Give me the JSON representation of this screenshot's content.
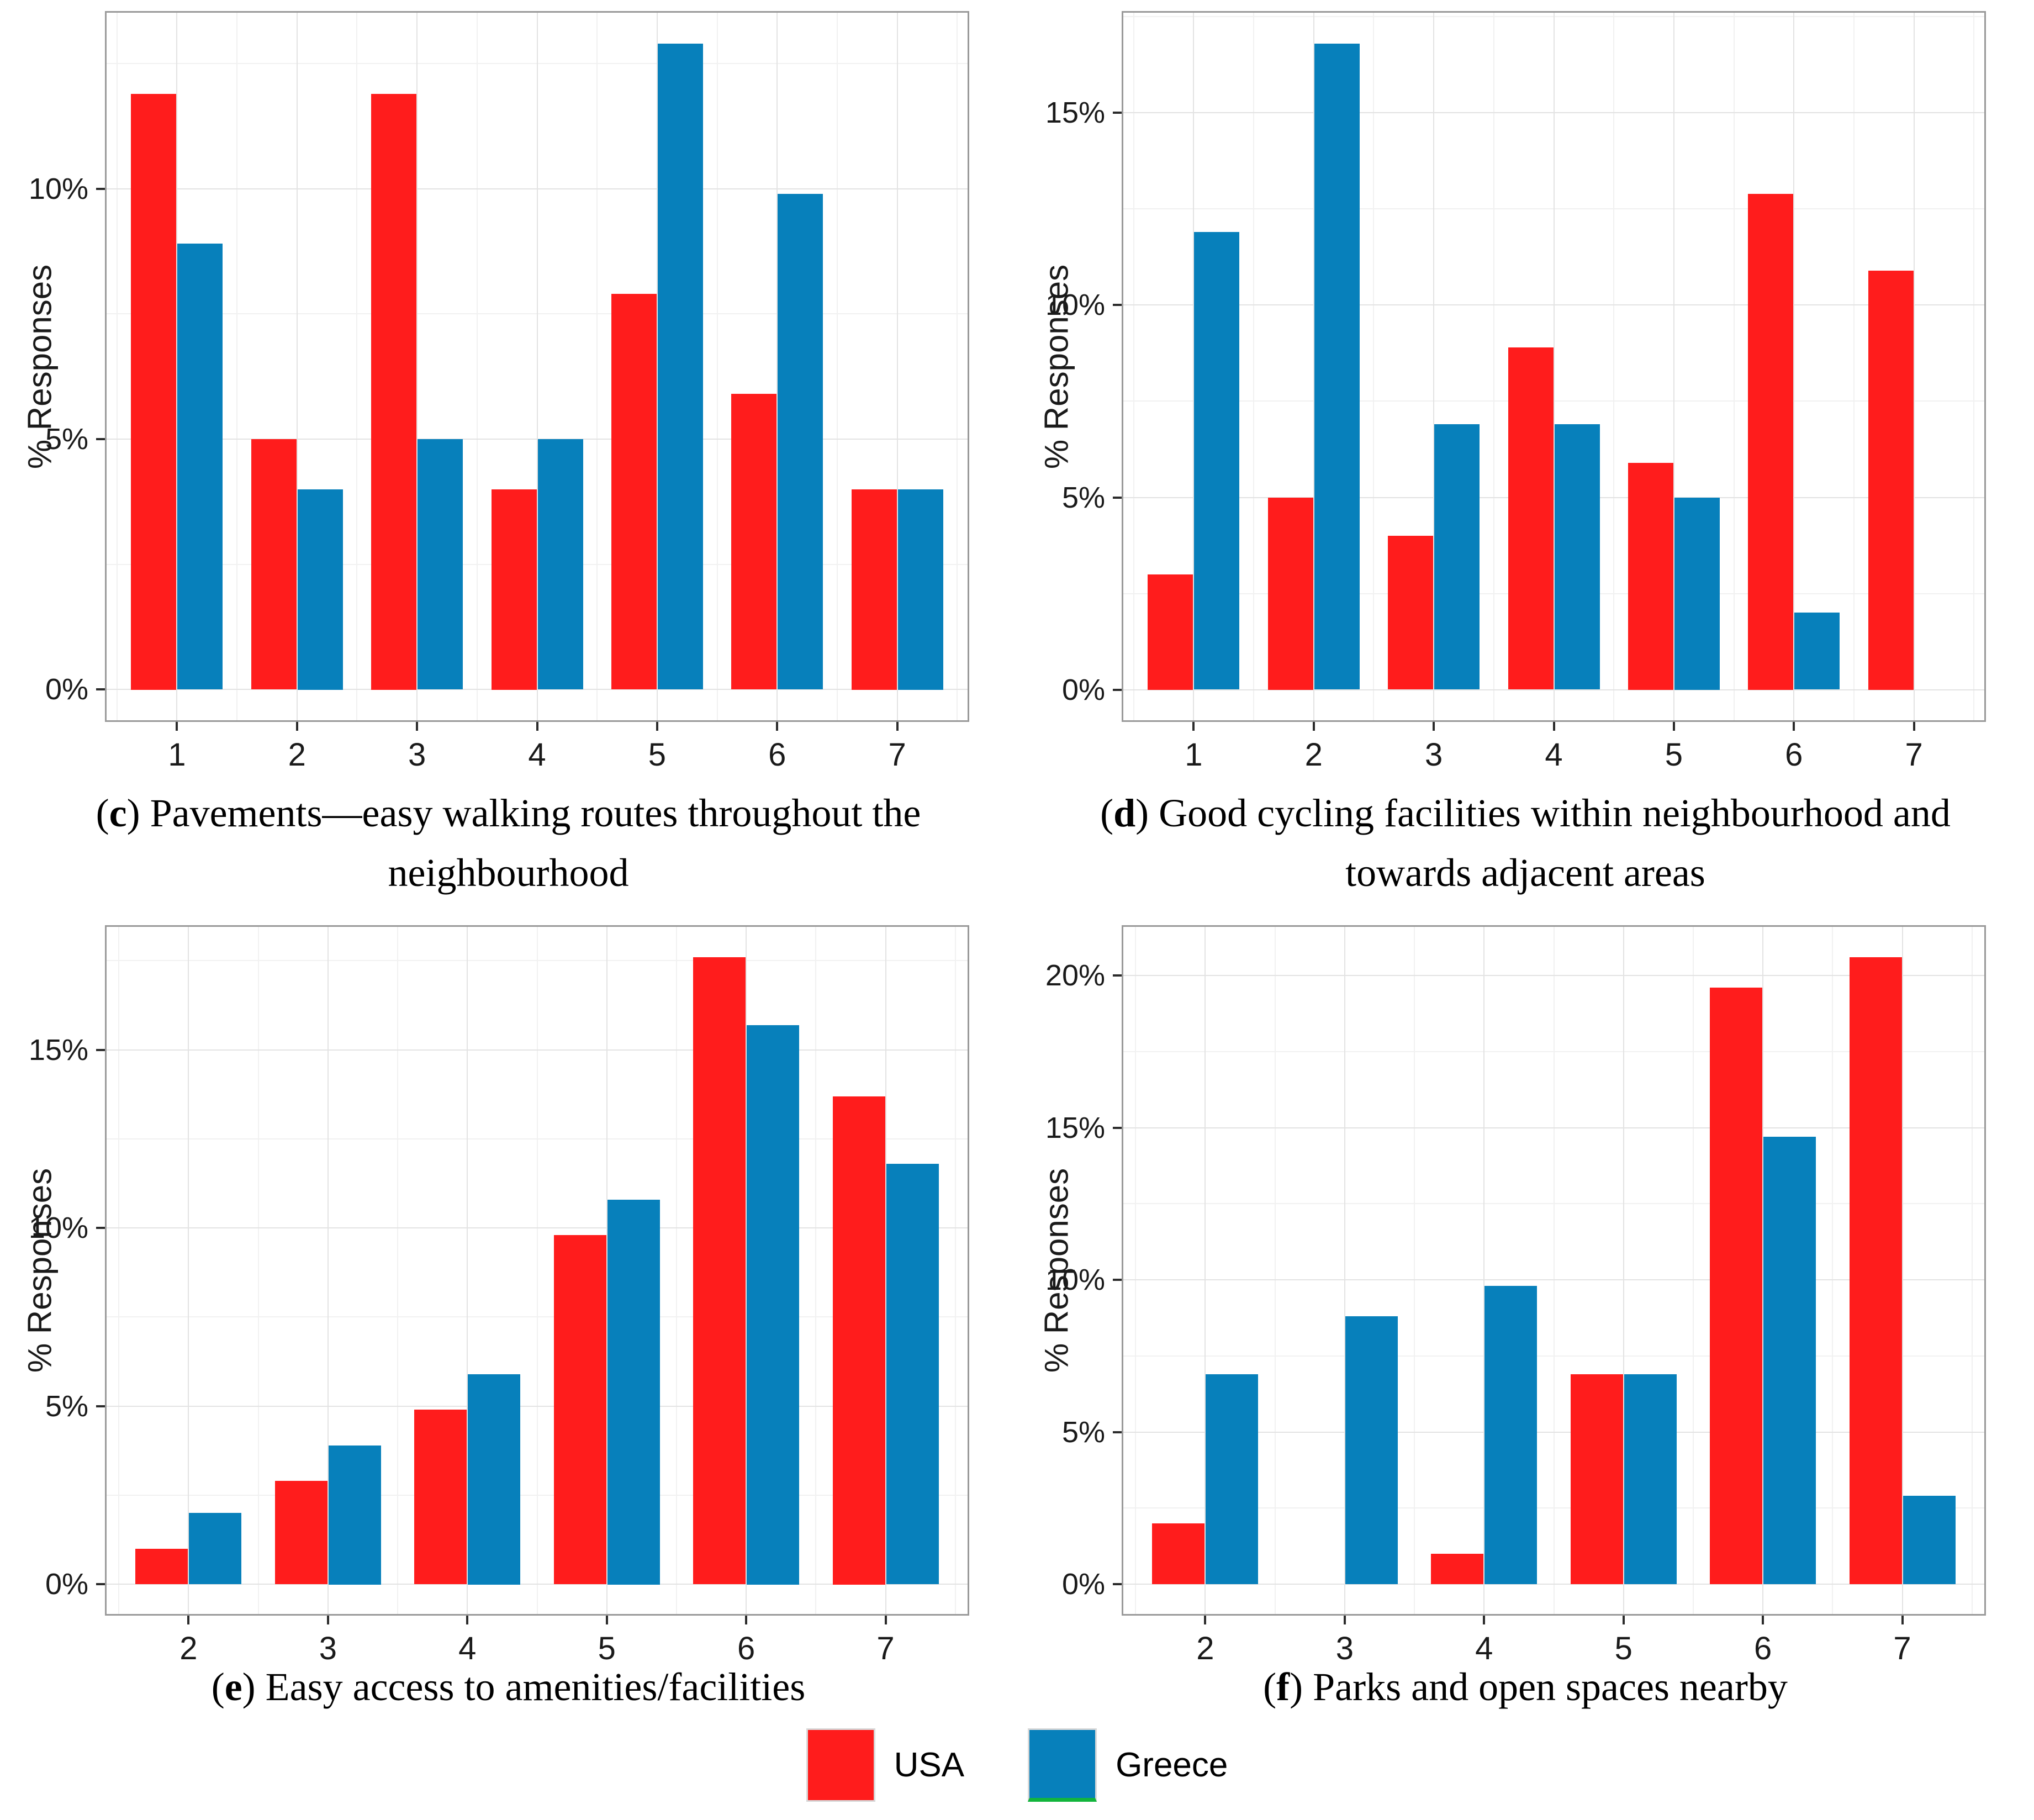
{
  "legend": {
    "position": "bottom-center",
    "items": [
      {
        "label": "USA",
        "color": "#ff1c1c"
      },
      {
        "label": "Greece",
        "color": "#0780bb",
        "underline_color": "#12b53c"
      }
    ]
  },
  "chart_data": [
    {
      "type": "bar",
      "panel_letter": "c",
      "caption_text": "Pavements—easy walking routes throughout the\nneighbourhood",
      "xlabel": "",
      "ylabel": "% Responses",
      "categories": [
        "1",
        "2",
        "3",
        "4",
        "5",
        "6",
        "7"
      ],
      "series": [
        {
          "name": "USA",
          "color": "#ff1c1c",
          "values": [
            11.9,
            5.0,
            11.9,
            4.0,
            7.9,
            5.9,
            4.0
          ]
        },
        {
          "name": "Greece",
          "color": "#0780bb",
          "values": [
            8.9,
            4.0,
            5.0,
            5.0,
            12.9,
            9.9,
            4.0
          ]
        }
      ],
      "ytick_labels": [
        "0%",
        "5%",
        "10%"
      ],
      "ytick_values": [
        0,
        5,
        10
      ],
      "ylim": [
        -0.65,
        13.55
      ],
      "grid": true,
      "legend_position": "shared-bottom"
    },
    {
      "type": "bar",
      "panel_letter": "d",
      "caption_text": "Good cycling facilities within neighbourhood and\ntowards adjacent areas",
      "xlabel": "",
      "ylabel": "% Responses",
      "categories": [
        "1",
        "2",
        "3",
        "4",
        "5",
        "6",
        "7"
      ],
      "series": [
        {
          "name": "USA",
          "color": "#ff1c1c",
          "values": [
            3.0,
            5.0,
            4.0,
            8.9,
            5.9,
            12.9,
            10.9
          ]
        },
        {
          "name": "Greece",
          "color": "#0780bb",
          "values": [
            11.9,
            16.8,
            6.9,
            6.9,
            5.0,
            2.0,
            0
          ]
        }
      ],
      "ytick_labels": [
        "0%",
        "5%",
        "10%",
        "15%"
      ],
      "ytick_values": [
        0,
        5,
        10,
        15
      ],
      "ylim": [
        -0.84,
        17.65
      ],
      "grid": true,
      "legend_position": "shared-bottom"
    },
    {
      "type": "bar",
      "panel_letter": "e",
      "caption_text": "Easy access to amenities/facilities",
      "xlabel": "",
      "ylabel": "% Responses",
      "categories": [
        "2",
        "3",
        "4",
        "5",
        "6",
        "7"
      ],
      "series": [
        {
          "name": "USA",
          "color": "#ff1c1c",
          "values": [
            1.0,
            2.9,
            4.9,
            9.8,
            17.6,
            13.7
          ]
        },
        {
          "name": "Greece",
          "color": "#0780bb",
          "values": [
            2.0,
            3.9,
            5.9,
            10.8,
            15.7,
            11.8
          ]
        }
      ],
      "ytick_labels": [
        "0%",
        "5%",
        "10%",
        "15%"
      ],
      "ytick_values": [
        0,
        5,
        10,
        15
      ],
      "ylim": [
        -0.88,
        18.5
      ],
      "grid": true,
      "legend_position": "shared-bottom"
    },
    {
      "type": "bar",
      "panel_letter": "f",
      "caption_text": "Parks and open spaces nearby",
      "xlabel": "",
      "ylabel": "% Responses",
      "categories": [
        "2",
        "3",
        "4",
        "5",
        "6",
        "7"
      ],
      "series": [
        {
          "name": "USA",
          "color": "#ff1c1c",
          "values": [
            2.0,
            0,
            1.0,
            6.9,
            19.6,
            20.6
          ]
        },
        {
          "name": "Greece",
          "color": "#0780bb",
          "values": [
            6.9,
            8.8,
            9.8,
            6.9,
            14.7,
            2.9
          ]
        }
      ],
      "ytick_labels": [
        "0%",
        "5%",
        "10%",
        "15%",
        "20%"
      ],
      "ytick_values": [
        0,
        5,
        10,
        15,
        20
      ],
      "ylim": [
        -1.03,
        21.65
      ],
      "grid": true,
      "legend_position": "shared-bottom"
    }
  ]
}
